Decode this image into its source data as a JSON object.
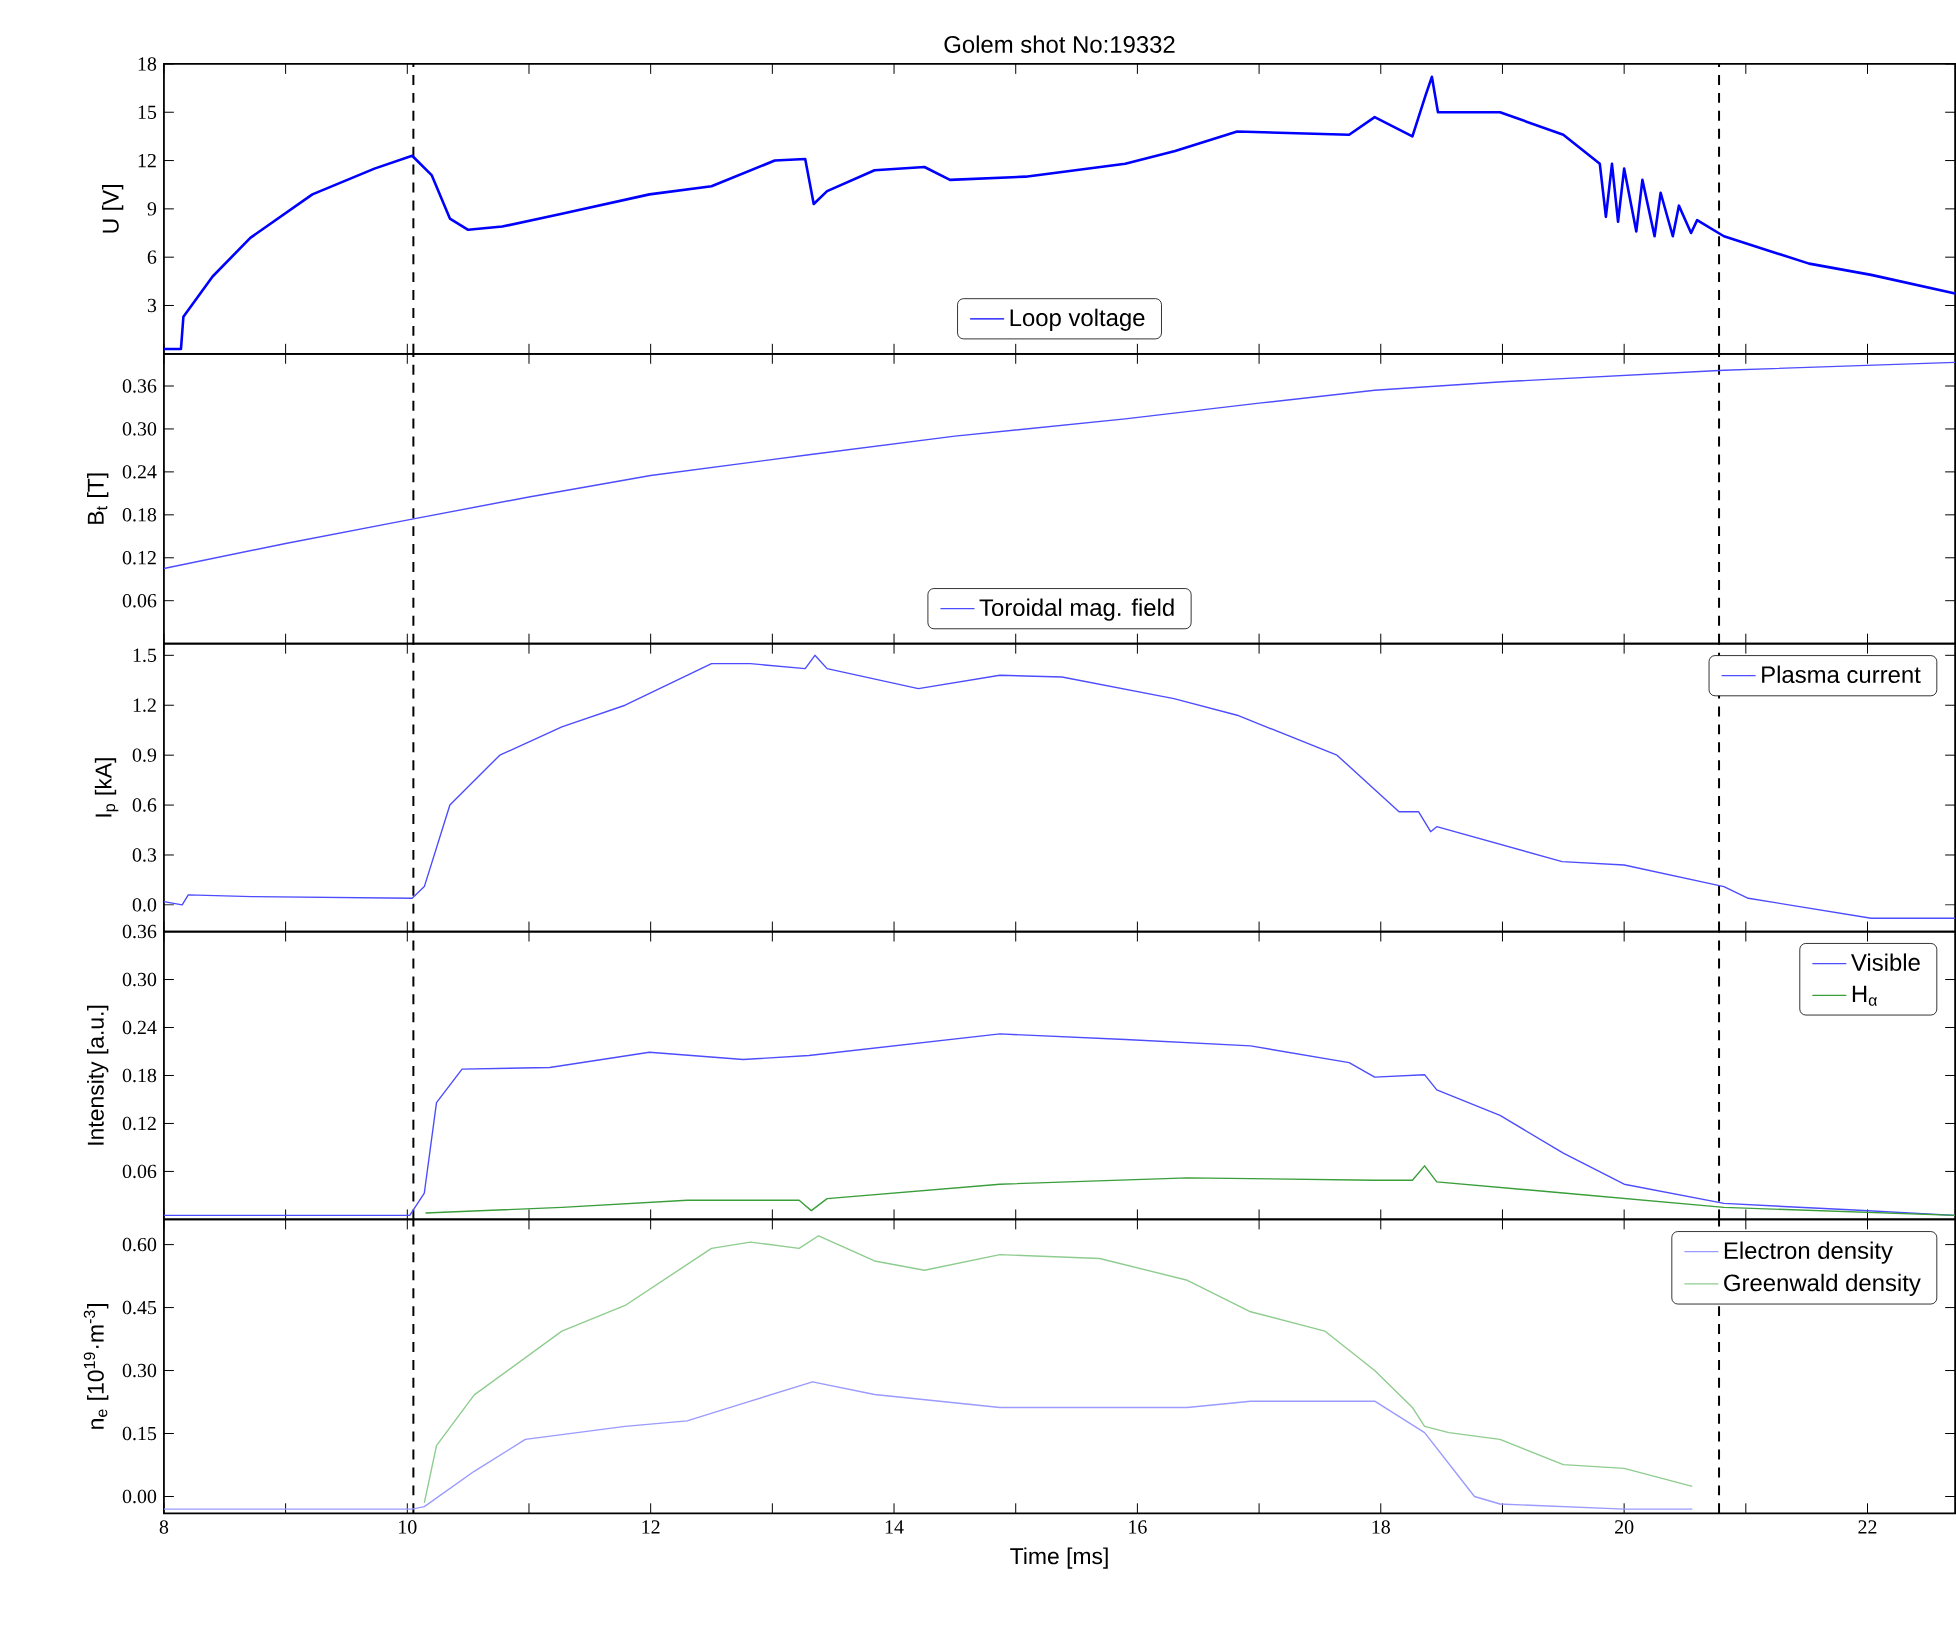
{
  "chart_data": [
    {
      "type": "line",
      "title": "Golem shot No:19332",
      "ylabel": "U [V]",
      "xlim": [
        8,
        22.72
      ],
      "xticks": [
        8,
        {
          "value": 9,
          "label": null
        },
        10,
        {
          "value": 11,
          "label": null
        },
        12,
        {
          "value": 13,
          "label": null
        },
        14,
        {
          "value": 15,
          "label": null
        },
        16,
        {
          "value": 17,
          "label": null
        },
        18,
        {
          "value": 19,
          "label": null
        },
        20,
        {
          "value": 21,
          "label": null
        },
        22
      ],
      "ylim": [
        0,
        18
      ],
      "yticks": [
        3,
        6,
        9,
        12,
        15,
        18
      ],
      "tick_labels": "y",
      "legend": "bottom",
      "grid": false,
      "marker": "none",
      "line_style": "solid",
      "ref_lines": [
        {
          "axis": "x",
          "value": 10.05,
          "color": "#000000",
          "line_style": "dashed"
        },
        {
          "axis": "x",
          "value": 20.78,
          "color": "#000000",
          "line_style": "dashed"
        }
      ],
      "series": [
        {
          "name": "Loop voltage",
          "color": "#0000ff",
          "x": [
            8.0,
            8.14,
            8.16,
            8.4,
            8.71,
            9.22,
            9.73,
            10.04,
            10.2,
            10.35,
            10.5,
            10.78,
            11.27,
            11.99,
            12.5,
            13.02,
            13.27,
            13.34,
            13.45,
            13.84,
            14.25,
            14.46,
            15.08,
            15.9,
            16.31,
            16.82,
            17.74,
            17.95,
            18.26,
            18.37,
            18.42,
            18.47,
            18.98,
            19.5,
            19.8,
            19.85,
            19.9,
            19.95,
            20.0,
            20.1,
            20.15,
            20.25,
            20.3,
            20.4,
            20.45,
            20.55,
            20.6,
            20.82,
            21.52,
            22.03,
            22.72
          ],
          "values": [
            0.3,
            0.3,
            2.3,
            4.8,
            7.2,
            9.9,
            11.5,
            12.3,
            11.1,
            8.4,
            7.7,
            7.9,
            8.7,
            9.9,
            10.4,
            12.0,
            12.1,
            9.3,
            10.1,
            11.4,
            11.6,
            10.8,
            11.0,
            11.8,
            12.6,
            13.8,
            13.6,
            14.7,
            13.5,
            16.1,
            17.2,
            15.0,
            15.0,
            13.6,
            11.8,
            8.5,
            11.8,
            8.2,
            11.5,
            7.6,
            10.8,
            7.3,
            10.0,
            7.3,
            9.2,
            7.5,
            8.3,
            7.3,
            5.6,
            4.9,
            3.75
          ]
        }
      ]
    },
    {
      "type": "line",
      "ylabel": "B$_{t}$ [T]",
      "xlim": [
        8,
        22.72
      ],
      "xticks": [
        8,
        {
          "value": 9,
          "label": null
        },
        10,
        {
          "value": 11,
          "label": null
        },
        12,
        {
          "value": 13,
          "label": null
        },
        14,
        {
          "value": 15,
          "label": null
        },
        16,
        {
          "value": 17,
          "label": null
        },
        18,
        {
          "value": 19,
          "label": null
        },
        20,
        {
          "value": 21,
          "label": null
        },
        22
      ],
      "ylim": [
        0,
        0.405
      ],
      "yticks": [
        0.06,
        0.12,
        0.18,
        0.24,
        {
          "value": 0.3,
          "label": "0.30"
        },
        0.36
      ],
      "tick_labels": "y",
      "legend": "bottom",
      "grid": false,
      "marker": "none",
      "line_style": "solid",
      "ref_lines": [
        {
          "axis": "x",
          "value": 10.05,
          "color": "#000000",
          "line_style": "dashed"
        },
        {
          "axis": "x",
          "value": 20.78,
          "color": "#000000",
          "line_style": "dashed"
        }
      ],
      "series": [
        {
          "name": "Toroidal mag. field",
          "color": "#4d4dff",
          "x": [
            8.0,
            9.0,
            10.04,
            11.0,
            12.0,
            13.3,
            14.5,
            15.9,
            17.0,
            17.95,
            19.0,
            20.82,
            22.72
          ],
          "values": [
            0.105,
            0.14,
            0.174,
            0.205,
            0.235,
            0.264,
            0.29,
            0.314,
            0.336,
            0.354,
            0.366,
            0.382,
            0.393
          ]
        }
      ]
    },
    {
      "type": "line",
      "ylabel": "I$_{p}$ [kA]",
      "xlim": [
        8,
        22.72
      ],
      "xticks": [
        8,
        {
          "value": 9,
          "label": null
        },
        10,
        {
          "value": 11,
          "label": null
        },
        12,
        {
          "value": 13,
          "label": null
        },
        14,
        {
          "value": 15,
          "label": null
        },
        16,
        {
          "value": 17,
          "label": null
        },
        18,
        {
          "value": 19,
          "label": null
        },
        20,
        {
          "value": 21,
          "label": null
        },
        22
      ],
      "ylim": [
        -0.16,
        1.57
      ],
      "yticks": [
        {
          "value": 0,
          "label": "0.0"
        },
        0.3,
        0.6,
        0.9,
        1.2,
        1.5
      ],
      "tick_labels": "y",
      "legend": "top right",
      "grid": false,
      "marker": "none",
      "line_style": "solid",
      "ref_lines": [
        {
          "axis": "x",
          "value": 10.05,
          "color": "#000000",
          "line_style": "dashed"
        },
        {
          "axis": "x",
          "value": 20.78,
          "color": "#000000",
          "line_style": "dashed"
        }
      ],
      "series": [
        {
          "name": "Plasma current",
          "color": "#4d4dff",
          "x": [
            8.0,
            8.15,
            8.2,
            8.72,
            10.04,
            10.14,
            10.35,
            10.76,
            11.27,
            11.79,
            12.5,
            12.82,
            13.27,
            13.35,
            13.45,
            14.2,
            14.87,
            15.38,
            16.3,
            16.82,
            17.64,
            18.15,
            18.31,
            18.41,
            18.46,
            19.49,
            20.0,
            20.82,
            21.02,
            22.03,
            22.72
          ],
          "values": [
            0.02,
            0.0,
            0.06,
            0.05,
            0.04,
            0.11,
            0.6,
            0.9,
            1.07,
            1.2,
            1.45,
            1.45,
            1.42,
            1.5,
            1.42,
            1.3,
            1.38,
            1.37,
            1.24,
            1.14,
            0.9,
            0.56,
            0.56,
            0.44,
            0.47,
            0.26,
            0.24,
            0.11,
            0.04,
            -0.08,
            -0.08
          ]
        }
      ]
    },
    {
      "type": "line",
      "ylabel": "Intensity [a.u.]",
      "xlim": [
        8,
        22.72
      ],
      "xticks": [
        8,
        {
          "value": 9,
          "label": null
        },
        10,
        {
          "value": 11,
          "label": null
        },
        12,
        {
          "value": 13,
          "label": null
        },
        14,
        {
          "value": 15,
          "label": null
        },
        16,
        {
          "value": 17,
          "label": null
        },
        18,
        {
          "value": 19,
          "label": null
        },
        20,
        {
          "value": 21,
          "label": null
        },
        22
      ],
      "ylim": [
        0,
        0.36
      ],
      "yticks": [
        0.06,
        0.12,
        0.18,
        0.24,
        {
          "value": 0.3,
          "label": "0.30"
        },
        0.36
      ],
      "tick_labels": "y",
      "legend": "top right",
      "grid": false,
      "marker": "none",
      "line_style": "solid",
      "ref_lines": [
        {
          "axis": "x",
          "value": 10.05,
          "color": "#000000",
          "line_style": "dashed"
        },
        {
          "axis": "x",
          "value": 20.78,
          "color": "#000000",
          "line_style": "dashed"
        }
      ],
      "series": [
        {
          "name": "Visible",
          "color": "#4d4dff",
          "x": [
            8.0,
            10.02,
            10.14,
            10.24,
            10.45,
            11.17,
            11.99,
            12.76,
            13.3,
            14.87,
            15.9,
            16.93,
            17.74,
            17.95,
            18.36,
            18.46,
            18.98,
            19.5,
            20.0,
            20.82,
            21.85,
            22.72
          ],
          "values": [
            0.005,
            0.005,
            0.033,
            0.146,
            0.188,
            0.19,
            0.209,
            0.2,
            0.205,
            0.232,
            0.225,
            0.217,
            0.196,
            0.178,
            0.181,
            0.162,
            0.13,
            0.083,
            0.044,
            0.02,
            0.012,
            0.005
          ]
        },
        {
          "name": "H$_{α}$",
          "color": "#3a9e3a",
          "x": [
            10.15,
            11.27,
            12.3,
            13.22,
            13.32,
            13.45,
            14.87,
            16.41,
            17.95,
            18.26,
            18.36,
            18.46,
            19.5,
            20.82,
            22.72
          ],
          "values": [
            0.008,
            0.015,
            0.024,
            0.024,
            0.011,
            0.026,
            0.044,
            0.052,
            0.049,
            0.049,
            0.067,
            0.047,
            0.033,
            0.015,
            0.005
          ]
        }
      ]
    },
    {
      "type": "line",
      "ylabel": "n$_{e}$ [10$^{19}$·m$^{-3}$]",
      "xlabel": "Time [ms]",
      "xlim": [
        8,
        22.72
      ],
      "xticks": [
        8,
        {
          "value": 9,
          "label": null
        },
        10,
        {
          "value": 11,
          "label": null
        },
        12,
        {
          "value": 13,
          "label": null
        },
        14,
        {
          "value": 15,
          "label": null
        },
        16,
        {
          "value": 17,
          "label": null
        },
        18,
        {
          "value": 19,
          "label": null
        },
        20,
        {
          "value": 21,
          "label": null
        },
        22
      ],
      "ylim": [
        -0.04,
        0.66
      ],
      "yticks": [
        {
          "value": 0,
          "label": "0.00"
        },
        0.15,
        {
          "value": 0.3,
          "label": "0.30"
        },
        0.45,
        {
          "value": 0.6,
          "label": "0.60"
        }
      ],
      "legend": "top right",
      "grid": false,
      "marker": "none",
      "line_style": "solid",
      "ref_lines": [
        {
          "axis": "x",
          "value": 10.05,
          "color": "#000000",
          "line_style": "dashed"
        },
        {
          "axis": "x",
          "value": 20.78,
          "color": "#000000",
          "line_style": "dashed"
        }
      ],
      "series": [
        {
          "name": "Electron density",
          "color": "#9a9aff",
          "x": [
            8.0,
            10.04,
            10.14,
            10.55,
            10.97,
            11.79,
            12.3,
            12.82,
            13.33,
            13.84,
            14.87,
            16.41,
            16.93,
            17.95,
            18.36,
            18.77,
            18.98,
            20.0,
            20.56
          ],
          "values": [
            -0.03,
            -0.03,
            -0.024,
            0.06,
            0.136,
            0.167,
            0.18,
            0.227,
            0.273,
            0.243,
            0.212,
            0.212,
            0.227,
            0.227,
            0.152,
            0.0,
            -0.018,
            -0.03,
            -0.03
          ]
        },
        {
          "name": "Greenwald density",
          "color": "#8fcc8f",
          "x": [
            10.14,
            10.24,
            10.55,
            11.27,
            11.79,
            12.5,
            12.82,
            13.22,
            13.38,
            13.84,
            14.25,
            14.87,
            15.69,
            16.41,
            16.93,
            17.54,
            17.95,
            18.26,
            18.36,
            18.56,
            18.98,
            19.5,
            20.0,
            20.56
          ],
          "values": [
            -0.015,
            0.121,
            0.242,
            0.394,
            0.455,
            0.591,
            0.606,
            0.591,
            0.621,
            0.561,
            0.539,
            0.576,
            0.567,
            0.515,
            0.44,
            0.394,
            0.3,
            0.212,
            0.167,
            0.152,
            0.136,
            0.076,
            0.067,
            0.024
          ]
        }
      ]
    }
  ]
}
